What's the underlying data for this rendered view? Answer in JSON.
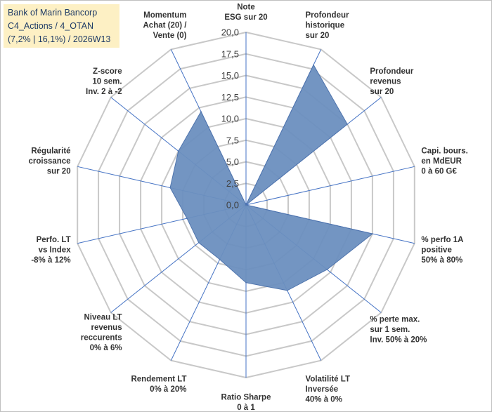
{
  "header": {
    "company": "Bank of Marin Bancorp",
    "category": "C4_Actions / 4_OTAN",
    "performance": "(7,2% | 16,1%) / 2026W13"
  },
  "colors": {
    "fill": "#6b8fbf",
    "outline": "#4f74ad",
    "grid": "#c8c8c8",
    "spoke": "#4472c4",
    "title_bg": "#fdf0c4"
  },
  "chart_data": {
    "type": "radar",
    "r_min": 0,
    "r_max": 20,
    "tick_step": 2.5,
    "tick_labels": [
      "0,0",
      "2,5",
      "5,0",
      "7,5",
      "10,0",
      "12,5",
      "15,0",
      "17,5",
      "20,0"
    ],
    "axes": [
      {
        "label": [
          "Note",
          "ESG sur 20"
        ],
        "value": 0
      },
      {
        "label": [
          "Profondeur",
          "historique",
          "sur 20"
        ],
        "value": 18
      },
      {
        "label": [
          "Profondeur",
          "revenus",
          "sur 20"
        ],
        "value": 15
      },
      {
        "label": [
          "Capi. bours.",
          "en MdEUR",
          "0 à 60 G€"
        ],
        "value": 0
      },
      {
        "label": [
          "% perfo 1A",
          "positive",
          "50% à 80%"
        ],
        "value": 15
      },
      {
        "label": [
          "% perte max.",
          "sur 1 sem.",
          "Inv. 50% à 20%"
        ],
        "value": 12
      },
      {
        "label": [
          "Volatilité LT",
          "Inversée",
          "40% à 0%"
        ],
        "value": 11
      },
      {
        "label": [
          "Ratio Sharpe",
          "0 à 1"
        ],
        "value": 9
      },
      {
        "label": [
          "Rendement LT",
          "0% à 20%"
        ],
        "value": 7
      },
      {
        "label": [
          "Niveau LT",
          "revenus",
          "reccurents",
          "0% à 6%"
        ],
        "value": 7
      },
      {
        "label": [
          "Perfo. LT",
          "vs Index",
          "-8% à 12%"
        ],
        "value": 7
      },
      {
        "label": [
          "Régularité",
          "croissance",
          "sur 20"
        ],
        "value": 9
      },
      {
        "label": [
          "Z-score",
          "10 sem.",
          "Inv. 2 à -2"
        ],
        "value": 10
      },
      {
        "label": [
          "Momentum",
          "Achat (20) /",
          "Vente (0)"
        ],
        "value": 12
      }
    ]
  }
}
